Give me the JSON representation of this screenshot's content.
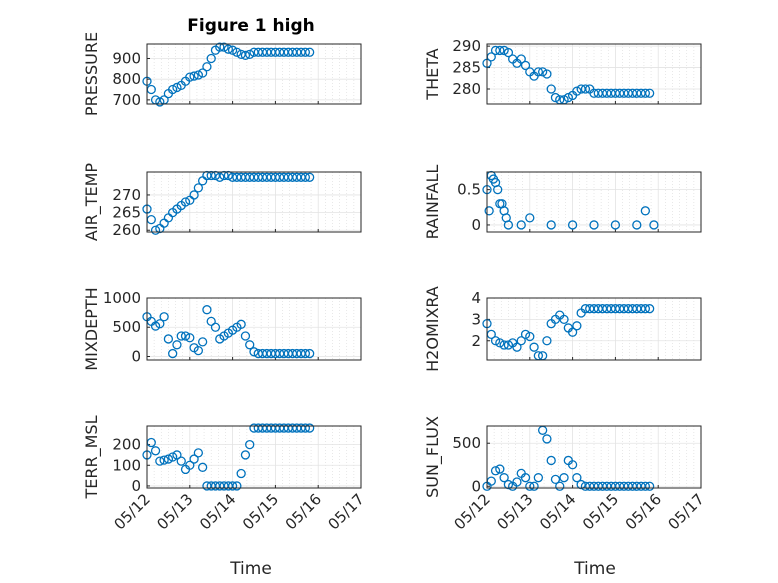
{
  "figure": {
    "title": "Figure 1 high",
    "xlabel": "Time",
    "marker_color": "#0072BD",
    "x_ticks": [
      "05/12",
      "05/13",
      "05/14",
      "05/15",
      "05/16",
      "05/17"
    ]
  },
  "chart_data": [
    {
      "type": "scatter",
      "ylabel": "PRESSURE",
      "ylim": [
        680,
        970
      ],
      "yticks": [
        "700",
        "800",
        "900"
      ],
      "x": [
        0,
        0.1,
        0.2,
        0.3,
        0.4,
        0.5,
        0.6,
        0.7,
        0.8,
        0.9,
        1.0,
        1.1,
        1.2,
        1.3,
        1.4,
        1.5,
        1.6,
        1.7,
        1.8,
        1.9,
        2.0,
        2.1,
        2.2,
        2.3,
        2.4,
        2.5,
        2.6,
        2.7,
        2.8,
        2.9,
        3.0,
        3.1,
        3.2,
        3.3,
        3.4,
        3.5,
        3.6,
        3.7,
        3.8
      ],
      "y": [
        790,
        750,
        700,
        690,
        700,
        730,
        750,
        760,
        770,
        790,
        810,
        815,
        820,
        830,
        860,
        900,
        940,
        955,
        955,
        945,
        940,
        930,
        920,
        915,
        920,
        930,
        930,
        930,
        930,
        930,
        930,
        930,
        930,
        930,
        930,
        930,
        930,
        930,
        930
      ]
    },
    {
      "type": "scatter",
      "ylabel": "THETA",
      "ylim": [
        276.5,
        290.5
      ],
      "yticks": [
        "280",
        "285",
        "290"
      ],
      "x": [
        0,
        0.1,
        0.2,
        0.3,
        0.4,
        0.5,
        0.6,
        0.7,
        0.8,
        0.9,
        1.0,
        1.1,
        1.2,
        1.3,
        1.4,
        1.5,
        1.6,
        1.7,
        1.8,
        1.9,
        2.0,
        2.1,
        2.2,
        2.3,
        2.4,
        2.5,
        2.6,
        2.7,
        2.8,
        2.9,
        3.0,
        3.1,
        3.2,
        3.3,
        3.4,
        3.5,
        3.6,
        3.7,
        3.8
      ],
      "y": [
        286,
        287.5,
        289,
        289,
        289,
        288.5,
        287,
        286,
        287,
        285.5,
        284,
        283,
        284,
        284,
        283.5,
        280,
        278,
        277.5,
        277.5,
        278,
        278.5,
        279.5,
        280,
        280,
        280,
        279,
        279,
        279,
        279,
        279,
        279,
        279,
        279,
        279,
        279,
        279,
        279,
        279,
        279
      ]
    },
    {
      "type": "scatter",
      "ylabel": "AIR_TEMP",
      "ylim": [
        259.5,
        276.5
      ],
      "yticks": [
        "260",
        "265",
        "270"
      ],
      "x": [
        0,
        0.1,
        0.2,
        0.3,
        0.4,
        0.5,
        0.6,
        0.7,
        0.8,
        0.9,
        1.0,
        1.1,
        1.2,
        1.3,
        1.4,
        1.5,
        1.6,
        1.7,
        1.8,
        1.9,
        2.0,
        2.1,
        2.2,
        2.3,
        2.4,
        2.5,
        2.6,
        2.7,
        2.8,
        2.9,
        3.0,
        3.1,
        3.2,
        3.3,
        3.4,
        3.5,
        3.6,
        3.7,
        3.8
      ],
      "y": [
        266,
        263,
        260,
        260.5,
        262,
        263.5,
        265,
        266,
        267,
        268,
        268.5,
        270,
        272,
        274,
        275.5,
        275.5,
        275.5,
        275,
        275.5,
        275.5,
        275,
        275,
        275,
        275,
        275,
        275,
        275,
        275,
        275,
        275,
        275,
        275,
        275,
        275,
        275,
        275,
        275,
        275,
        275
      ]
    },
    {
      "type": "scatter",
      "ylabel": "RAINFALL",
      "ylim": [
        -0.1,
        0.75
      ],
      "yticks": [
        "0",
        "0.5"
      ],
      "x": [
        0.0,
        0.05,
        0.1,
        0.15,
        0.2,
        0.25,
        0.3,
        0.35,
        0.4,
        0.45,
        0.5,
        0.8,
        1.0,
        1.5,
        2.0,
        2.5,
        3.0,
        3.5,
        3.7,
        3.9
      ],
      "y": [
        0.5,
        0.2,
        0.7,
        0.65,
        0.6,
        0.5,
        0.3,
        0.3,
        0.2,
        0.1,
        0,
        0,
        0.1,
        0,
        0,
        0,
        0,
        0,
        0.2,
        0
      ]
    },
    {
      "type": "scatter",
      "ylabel": "MIXDEPTH",
      "ylim": [
        -60,
        1000
      ],
      "yticks": [
        "0",
        "500",
        "1000"
      ],
      "x": [
        0,
        0.1,
        0.2,
        0.3,
        0.4,
        0.5,
        0.6,
        0.7,
        0.8,
        0.9,
        1.0,
        1.1,
        1.2,
        1.3,
        1.4,
        1.5,
        1.6,
        1.7,
        1.8,
        1.9,
        2.0,
        2.1,
        2.2,
        2.3,
        2.4,
        2.5,
        2.6,
        2.7,
        2.8,
        2.9,
        3.0,
        3.1,
        3.2,
        3.3,
        3.4,
        3.5,
        3.6,
        3.7,
        3.8
      ],
      "y": [
        680,
        600,
        520,
        560,
        680,
        300,
        50,
        200,
        350,
        350,
        320,
        150,
        100,
        250,
        800,
        600,
        500,
        300,
        350,
        400,
        450,
        500,
        550,
        350,
        200,
        80,
        50,
        50,
        50,
        50,
        50,
        50,
        50,
        50,
        50,
        50,
        50,
        50,
        50
      ]
    },
    {
      "type": "scatter",
      "ylabel": "H2OMIXRA",
      "ylim": [
        1.1,
        4.0
      ],
      "yticks": [
        "2",
        "3",
        "4"
      ],
      "x": [
        0,
        0.1,
        0.2,
        0.3,
        0.4,
        0.5,
        0.6,
        0.7,
        0.8,
        0.9,
        1.0,
        1.1,
        1.2,
        1.3,
        1.4,
        1.5,
        1.6,
        1.7,
        1.8,
        1.9,
        2.0,
        2.1,
        2.2,
        2.3,
        2.4,
        2.5,
        2.6,
        2.7,
        2.8,
        2.9,
        3.0,
        3.1,
        3.2,
        3.3,
        3.4,
        3.5,
        3.6,
        3.7,
        3.8
      ],
      "y": [
        2.8,
        2.3,
        2.0,
        1.9,
        1.8,
        1.8,
        1.9,
        1.7,
        2.0,
        2.3,
        2.2,
        1.7,
        1.3,
        1.3,
        2.0,
        2.8,
        3.0,
        3.2,
        3.0,
        2.6,
        2.4,
        2.7,
        3.3,
        3.5,
        3.5,
        3.5,
        3.5,
        3.5,
        3.5,
        3.5,
        3.5,
        3.5,
        3.5,
        3.5,
        3.5,
        3.5,
        3.5,
        3.5,
        3.5
      ]
    },
    {
      "type": "scatter",
      "ylabel": "TERR_MSL",
      "ylim": [
        -10,
        290
      ],
      "yticks": [
        "0",
        "100",
        "200"
      ],
      "x": [
        0,
        0.1,
        0.2,
        0.3,
        0.4,
        0.5,
        0.6,
        0.7,
        0.8,
        0.9,
        1.0,
        1.1,
        1.2,
        1.3,
        1.4,
        1.5,
        1.6,
        1.7,
        1.8,
        1.9,
        2.0,
        2.1,
        2.2,
        2.3,
        2.4,
        2.5,
        2.6,
        2.7,
        2.8,
        2.9,
        3.0,
        3.1,
        3.2,
        3.3,
        3.4,
        3.5,
        3.6,
        3.7,
        3.8
      ],
      "y": [
        150,
        210,
        170,
        120,
        125,
        130,
        140,
        150,
        120,
        80,
        100,
        130,
        160,
        90,
        0,
        0,
        0,
        0,
        0,
        0,
        0,
        0,
        60,
        150,
        200,
        280,
        280,
        280,
        280,
        280,
        280,
        280,
        280,
        280,
        280,
        280,
        280,
        280,
        280
      ]
    },
    {
      "type": "scatter",
      "ylabel": "SUN_FLUX",
      "ylim": [
        -20,
        700
      ],
      "yticks": [
        "0",
        "500"
      ],
      "x": [
        0,
        0.1,
        0.2,
        0.3,
        0.4,
        0.5,
        0.6,
        0.7,
        0.8,
        0.9,
        1.0,
        1.1,
        1.2,
        1.3,
        1.4,
        1.5,
        1.6,
        1.7,
        1.8,
        1.9,
        2.0,
        2.1,
        2.2,
        2.3,
        2.4,
        2.5,
        2.6,
        2.7,
        2.8,
        2.9,
        3.0,
        3.1,
        3.2,
        3.3,
        3.4,
        3.5,
        3.6,
        3.7,
        3.8
      ],
      "y": [
        0,
        60,
        180,
        200,
        100,
        20,
        0,
        50,
        150,
        100,
        0,
        0,
        100,
        650,
        550,
        300,
        80,
        0,
        100,
        300,
        250,
        100,
        20,
        0,
        0,
        0,
        0,
        0,
        0,
        0,
        0,
        0,
        0,
        0,
        0,
        0,
        0,
        0,
        0
      ]
    }
  ]
}
